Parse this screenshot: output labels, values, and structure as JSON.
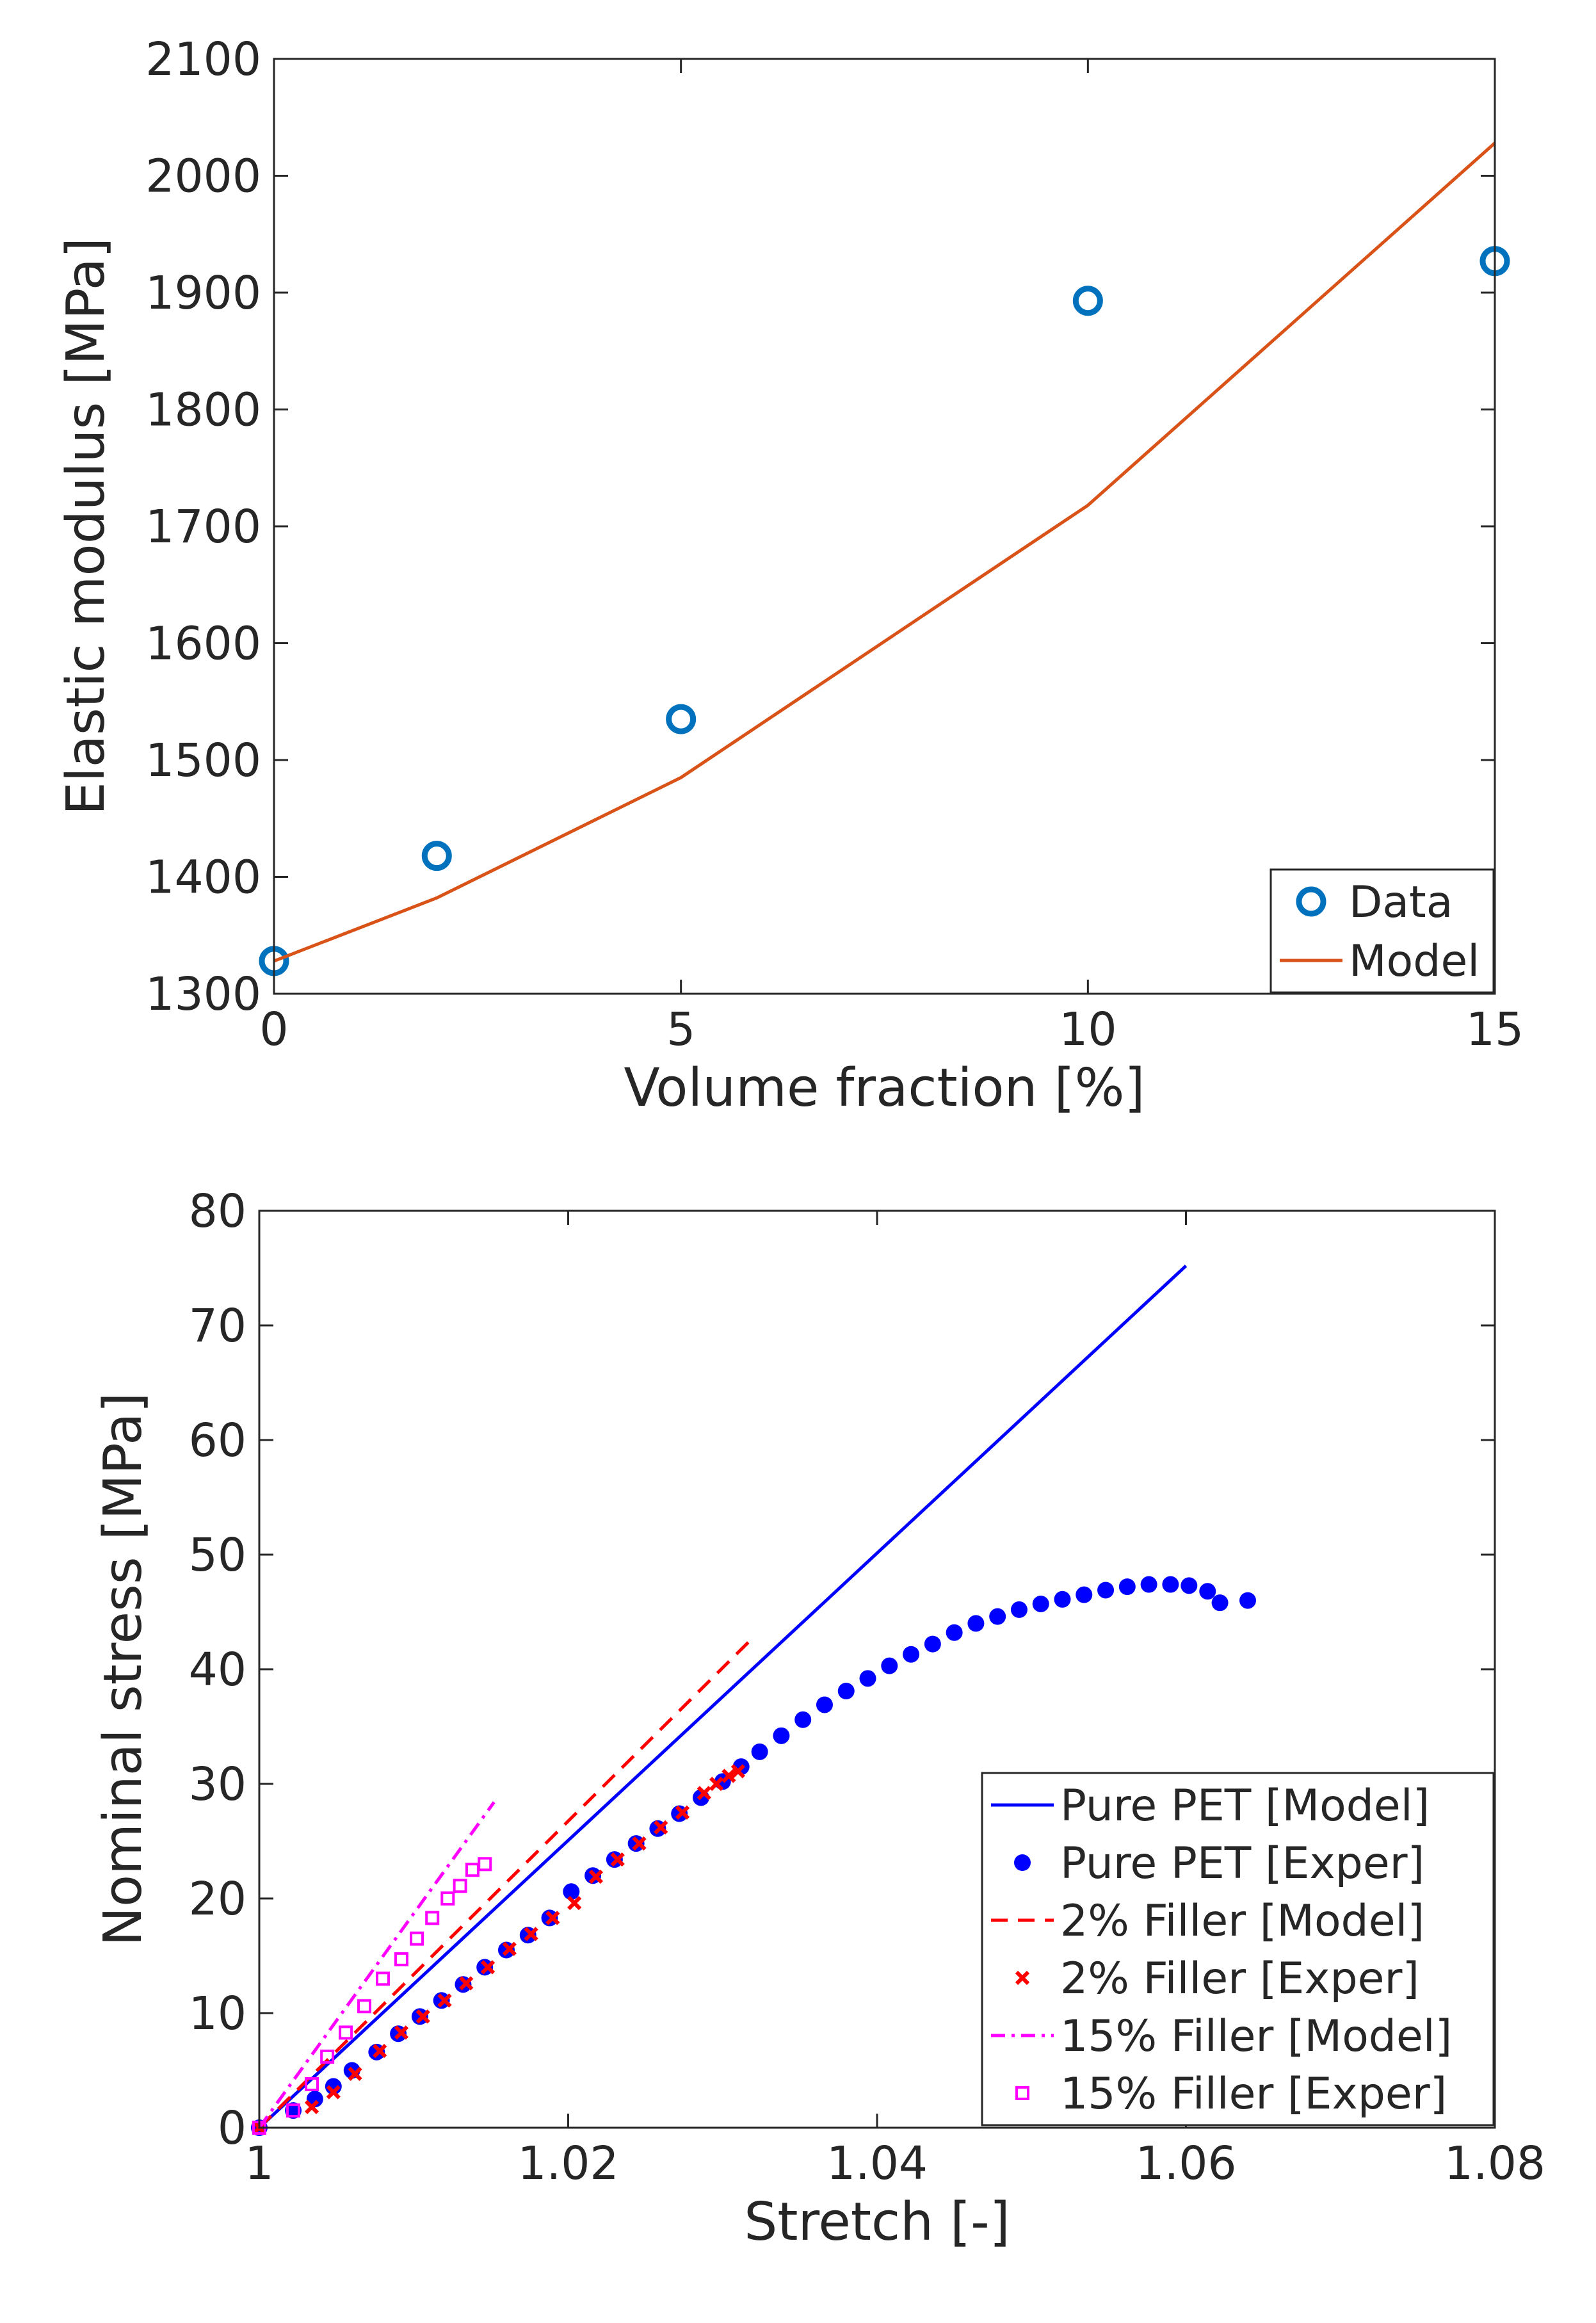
{
  "chart_data": [
    {
      "type": "line",
      "title": "",
      "xlabel": "Volume fraction [%]",
      "ylabel": "Elastic modulus [MPa]",
      "xlim": [
        0,
        15
      ],
      "ylim": [
        1300,
        2100
      ],
      "xticks": [
        0,
        5,
        10,
        15
      ],
      "xtick_labels": [
        "0",
        "5",
        "10",
        "15"
      ],
      "yticks": [
        1300,
        1400,
        1500,
        1600,
        1700,
        1800,
        1900,
        2000,
        2100
      ],
      "ytick_labels": [
        "1300",
        "1400",
        "1500",
        "1600",
        "1700",
        "1800",
        "1900",
        "2000",
        "2100"
      ],
      "grid": false,
      "legend_position": "bottom-right",
      "series": [
        {
          "name": "Data",
          "style": "markers",
          "marker": "circle",
          "color": "#0072BD",
          "x": [
            0,
            2,
            5,
            10,
            15
          ],
          "y": [
            1328,
            1418,
            1535,
            1893,
            1927
          ]
        },
        {
          "name": "Model",
          "style": "line",
          "color": "#D95319",
          "x": [
            0,
            2,
            5,
            10,
            15
          ],
          "y": [
            1328,
            1382,
            1485,
            1718,
            2028
          ]
        }
      ]
    },
    {
      "type": "line",
      "title": "",
      "xlabel": "Stretch [-]",
      "ylabel": "Nominal stress [MPa]",
      "xlim": [
        1,
        1.08
      ],
      "ylim": [
        0,
        80
      ],
      "xticks": [
        1,
        1.02,
        1.04,
        1.06,
        1.08
      ],
      "xtick_labels": [
        "1",
        "1.02",
        "1.04",
        "1.06",
        "1.08"
      ],
      "yticks": [
        0,
        10,
        20,
        30,
        40,
        50,
        60,
        70,
        80
      ],
      "ytick_labels": [
        "0",
        "10",
        "20",
        "30",
        "40",
        "50",
        "60",
        "70",
        "80"
      ],
      "grid": false,
      "legend_position": "bottom-right",
      "series": [
        {
          "name": "Pure PET [Model]",
          "style": "solid",
          "color": "#0000FF",
          "x": [
            1.0,
            1.06
          ],
          "y": [
            0,
            75.2
          ]
        },
        {
          "name": "Pure PET [Exper]",
          "style": "markers",
          "marker": "dot",
          "color": "#0000FF",
          "x": [
            1.0,
            1.0022,
            1.0036,
            1.0048,
            1.006,
            1.0076,
            1.009,
            1.0104,
            1.0118,
            1.0132,
            1.0146,
            1.016,
            1.0174,
            1.0188,
            1.0202,
            1.0216,
            1.023,
            1.0244,
            1.0258,
            1.0272,
            1.0286,
            1.03,
            1.0312,
            1.0324,
            1.0338,
            1.0352,
            1.0366,
            1.038,
            1.0394,
            1.0408,
            1.0422,
            1.0436,
            1.045,
            1.0464,
            1.0478,
            1.0492,
            1.0506,
            1.052,
            1.0534,
            1.0548,
            1.0562,
            1.0576,
            1.059,
            1.0602,
            1.0614,
            1.0622,
            1.064
          ],
          "y": [
            0,
            1.5,
            2.5,
            3.6,
            5.0,
            6.6,
            8.2,
            9.7,
            11.1,
            12.5,
            14.0,
            15.5,
            16.8,
            18.3,
            20.6,
            22.0,
            23.4,
            24.8,
            26.1,
            27.4,
            28.8,
            30.2,
            31.5,
            32.8,
            34.2,
            35.6,
            36.9,
            38.1,
            39.2,
            40.3,
            41.3,
            42.2,
            43.2,
            44.0,
            44.6,
            45.2,
            45.7,
            46.1,
            46.5,
            46.9,
            47.2,
            47.4,
            47.4,
            47.3,
            46.8,
            45.8,
            46.0
          ]
        },
        {
          "name": "2% Filler [Model]",
          "style": "dashed",
          "color": "#FF0000",
          "x": [
            1.0,
            1.032
          ],
          "y": [
            0,
            42.8
          ]
        },
        {
          "name": "2% Filler [Exper]",
          "style": "markers",
          "marker": "x",
          "color": "#FF0000",
          "x": [
            1.0,
            1.0034,
            1.0048,
            1.0062,
            1.0078,
            1.0092,
            1.0106,
            1.012,
            1.0134,
            1.0148,
            1.0162,
            1.0176,
            1.019,
            1.0204,
            1.0218,
            1.0232,
            1.0246,
            1.026,
            1.0274,
            1.0288,
            1.0296,
            1.0304,
            1.031
          ],
          "y": [
            0,
            1.8,
            3.1,
            4.7,
            6.7,
            8.3,
            9.7,
            11.1,
            12.6,
            14.0,
            15.6,
            16.9,
            18.3,
            19.6,
            21.9,
            23.4,
            24.8,
            26.2,
            27.5,
            29.2,
            30.0,
            30.7,
            31.1
          ]
        },
        {
          "name": "15% Filler [Model]",
          "style": "dashdot",
          "color": "#FF00FF",
          "x": [
            1.0,
            1.0152
          ],
          "y": [
            0,
            28.4
          ]
        },
        {
          "name": "15% Filler [Exper]",
          "style": "markers",
          "marker": "square",
          "color": "#FF00FF",
          "x": [
            1.0,
            1.0022,
            1.0034,
            1.0044,
            1.0056,
            1.0068,
            1.008,
            1.0092,
            1.0102,
            1.0112,
            1.0122,
            1.013,
            1.0138,
            1.0146
          ],
          "y": [
            0,
            1.5,
            3.8,
            6.2,
            8.3,
            10.6,
            13.0,
            14.7,
            16.5,
            18.3,
            20.0,
            21.1,
            22.5,
            23.0
          ]
        }
      ]
    }
  ]
}
